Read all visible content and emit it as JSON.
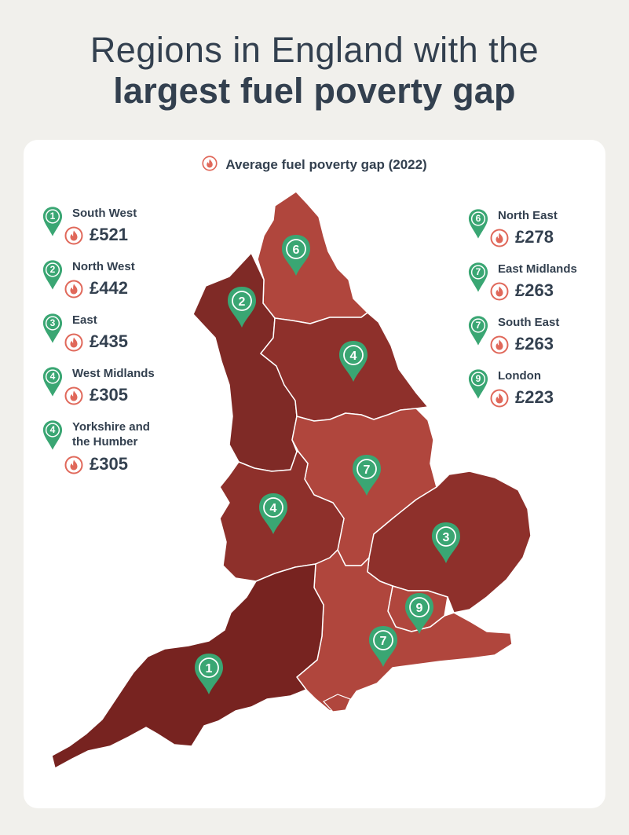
{
  "title": {
    "line1": "Regions in England with the",
    "line2": "largest fuel poverty gap"
  },
  "legend": {
    "label": "Average fuel poverty gap (2022)",
    "icon": "flame-icon"
  },
  "colors": {
    "background": "#f1f0ec",
    "card": "#ffffff",
    "text": "#33404f",
    "pin": "#3aa673",
    "flame": "#e0685a",
    "region_dark": "#7a2421",
    "region_mid": "#8e302b",
    "region_light": "#b0463d"
  },
  "left_list": [
    {
      "rank": "1",
      "name": "South West",
      "value": "£521"
    },
    {
      "rank": "2",
      "name": "North West",
      "value": "£442"
    },
    {
      "rank": "3",
      "name": "East",
      "value": "£435"
    },
    {
      "rank": "4",
      "name": "West Midlands",
      "value": "£305"
    },
    {
      "rank": "4",
      "name": "Yorkshire and the Humber",
      "value": "£305",
      "name_lines": [
        "Yorkshire and",
        "the Humber"
      ]
    }
  ],
  "right_list": [
    {
      "rank": "6",
      "name": "North East",
      "value": "£278"
    },
    {
      "rank": "7",
      "name": "East Midlands",
      "value": "£263"
    },
    {
      "rank": "7",
      "name": "South East",
      "value": "£263"
    },
    {
      "rank": "9",
      "name": "London",
      "value": "£223"
    }
  ],
  "map_pins": [
    {
      "region": "North East",
      "rank": "6"
    },
    {
      "region": "North West",
      "rank": "2"
    },
    {
      "region": "Yorkshire and the Humber",
      "rank": "4"
    },
    {
      "region": "East Midlands",
      "rank": "7"
    },
    {
      "region": "West Midlands",
      "rank": "4"
    },
    {
      "region": "East",
      "rank": "3"
    },
    {
      "region": "London",
      "rank": "9"
    },
    {
      "region": "South East",
      "rank": "7"
    },
    {
      "region": "South West",
      "rank": "1"
    }
  ]
}
